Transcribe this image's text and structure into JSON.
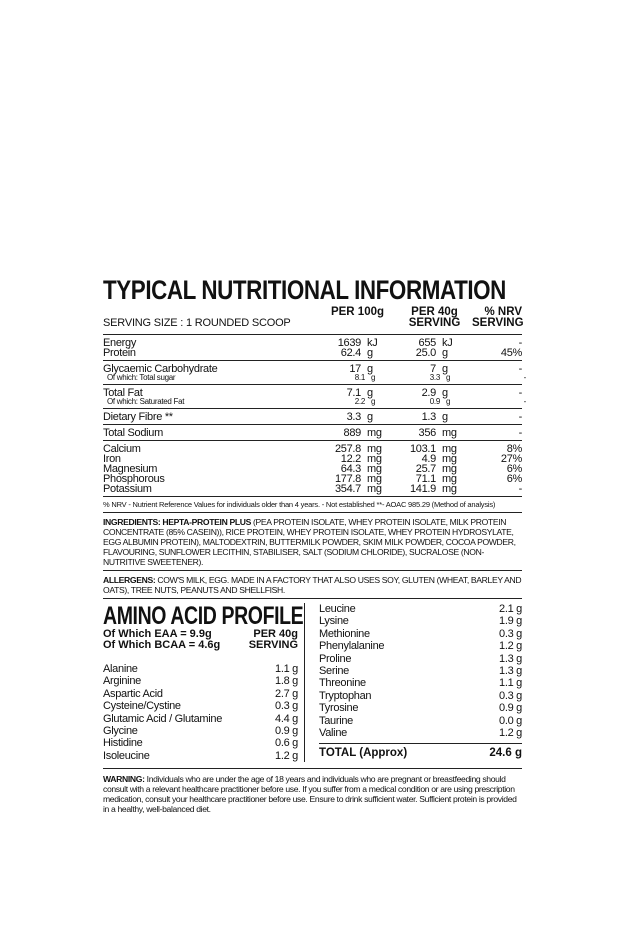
{
  "title": "TYPICAL NUTRITIONAL INFORMATION",
  "serving_size": "SERVING SIZE : 1 ROUNDED SCOOP",
  "columns": [
    "PER 100g",
    "PER 40g\nSERVING",
    "% NRV\nSERVING"
  ],
  "nutrition": [
    [
      [
        "Energy",
        "1639",
        "kJ",
        "655",
        "kJ",
        "-"
      ],
      [
        "Protein",
        "62.4",
        "g",
        "25.0",
        "g",
        "45%"
      ]
    ],
    [
      [
        "Glycaemic Carbohydrate",
        "17",
        "g",
        "7",
        "g",
        "-"
      ],
      [
        "Of which: Total sugar",
        "8.1",
        "g",
        "3.3",
        "g",
        "-"
      ]
    ],
    [
      [
        "Total Fat",
        "7.1",
        "g",
        "2.9",
        "g",
        "-"
      ],
      [
        "Of which: Saturated Fat",
        "2.2",
        "g",
        "0.9",
        "g",
        "-"
      ]
    ],
    [
      [
        "Dietary Fibre **",
        "3.3",
        "g",
        "1.3",
        "g",
        "-"
      ]
    ],
    [
      [
        "Total Sodium",
        "889",
        "mg",
        "356",
        "mg",
        "-"
      ]
    ],
    [
      [
        "Calcium",
        "257.8",
        "mg",
        "103.1",
        "mg",
        "8%"
      ],
      [
        "Iron",
        "12.2",
        "mg",
        "4.9",
        "mg",
        "27%"
      ],
      [
        "Magnesium",
        "64.3",
        "mg",
        "25.7",
        "mg",
        "6%"
      ],
      [
        "Phosphorous",
        "177.8",
        "mg",
        "71.1",
        "mg",
        "6%"
      ],
      [
        "Potassium",
        "354.7",
        "mg",
        "141.9",
        "mg",
        "-"
      ]
    ]
  ],
  "footnote": "% NRV - Nutrient Reference Values for individuals older than 4 years. - Not established **- AOAC 985.29 (Method of analysis)",
  "ingredients": {
    "label": "INGREDIENTS: HEPTA-PROTEIN PLUS",
    "text": "(PEA PROTEIN ISOLATE, WHEY PROTEIN ISOLATE, MILK PROTEIN CONCENTRATE (85% CASEIN)), RICE PROTEIN, WHEY PROTEIN ISOLATE, WHEY PROTEIN HYDROSYLATE, EGG ALBUMIN PROTEIN), MALTODEXTRIN, BUTTERMILK POWDER, SKIM MILK POWDER, COCOA POWDER, FLAVOURING, SUNFLOWER LECITHIN, STABILISER, SALT (SODIUM CHLORIDE), SUCRALOSE (NON-NUTRITIVE SWEETENER)."
  },
  "allergens": {
    "label": "ALLERGENS:",
    "text": "COW'S MILK, EGG. MADE IN A FACTORY THAT ALSO USES SOY, GLUTEN (WHEAT, BARLEY AND OATS), TREE NUTS, PEANUTS AND SHELLFISH."
  },
  "amino": {
    "title": "AMINO ACID PROFILE",
    "eaa": "Of Which EAA = 9.9g",
    "bcaa": "Of Which BCAA = 4.6g",
    "column": "PER 40g\nSERVING",
    "left": [
      [
        "Alanine",
        "1.1 g"
      ],
      [
        "Arginine",
        "1.8 g"
      ],
      [
        "Aspartic Acid",
        "2.7 g"
      ],
      [
        "Cysteine/Cystine",
        "0.3 g"
      ],
      [
        "Glutamic Acid / Glutamine",
        "4.4 g"
      ],
      [
        "Glycine",
        "0.9 g"
      ],
      [
        "Histidine",
        "0.6 g"
      ],
      [
        "Isoleucine",
        "1.2 g"
      ]
    ],
    "right": [
      [
        "Leucine",
        "2.1 g"
      ],
      [
        "Lysine",
        "1.9 g"
      ],
      [
        "Methionine",
        "0.3 g"
      ],
      [
        "Phenylalanine",
        "1.2 g"
      ],
      [
        "Proline",
        "1.3 g"
      ],
      [
        "Serine",
        "1.3 g"
      ],
      [
        "Threonine",
        "1.1 g"
      ],
      [
        "Tryptophan",
        "0.3 g"
      ],
      [
        "Tyrosine",
        "0.9 g"
      ],
      [
        "Taurine",
        "0.0 g"
      ],
      [
        "Valine",
        "1.2 g"
      ]
    ],
    "total": [
      "TOTAL (Approx)",
      "24.6 g"
    ]
  },
  "warning": {
    "label": "WARNING:",
    "text": "Individuals who are under the age of 18 years and individuals who are pregnant or breastfeeding should consult with a relevant healthcare practitioner before use. If you suffer from a medical condition or are using prescription medication, consult your healthcare practitioner before use. Ensure to drink sufficient water. Sufficient protein is provided in a healthy, well-balanced diet."
  }
}
